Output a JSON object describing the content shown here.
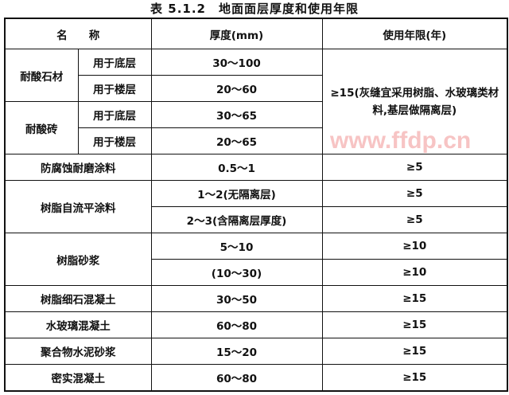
{
  "title": "表 5.1.2　地面面层厚度和使用年限",
  "headers": {
    "name": "名　　称",
    "thickness": "厚度(mm)",
    "life": "使用年限(年)"
  },
  "rows": [
    {
      "name": "耐酸石材",
      "sub": "用于底层",
      "thickness": "30～100"
    },
    {
      "sub": "用于楼层",
      "thickness": "20～60"
    },
    {
      "name": "耐酸砖",
      "sub": "用于底层",
      "thickness": "30～65"
    },
    {
      "sub": "用于楼层",
      "thickness": "20～65"
    },
    {
      "name": "防腐蚀耐磨涂料",
      "thickness": "0.5～1",
      "life": "≥5"
    },
    {
      "name": "树脂自流平涂料",
      "thickness": "1～2(无隔离层)",
      "life": "≥5"
    },
    {
      "thickness": "2～3(含隔离层厚度)",
      "life": "≥5"
    },
    {
      "name": "树脂砂浆",
      "thickness": "5～10",
      "life": "≥10"
    },
    {
      "thickness": "(10～30)",
      "life": "≥10"
    },
    {
      "name": "树脂细石混凝土",
      "thickness": "30～50",
      "life": "≥15"
    },
    {
      "name": "水玻璃混凝土",
      "thickness": "60～80",
      "life": "≥15"
    },
    {
      "name": "聚合物水泥砂浆",
      "thickness": "15～20",
      "life": "≥15"
    },
    {
      "name": "密实混凝土",
      "thickness": "60～80",
      "life": "≥15"
    }
  ],
  "stone_brick_life": "≥15(灰缝宜采用树脂、水玻璃类材料,基层做隔离层)",
  "watermark": "www.ffdp.cn"
}
